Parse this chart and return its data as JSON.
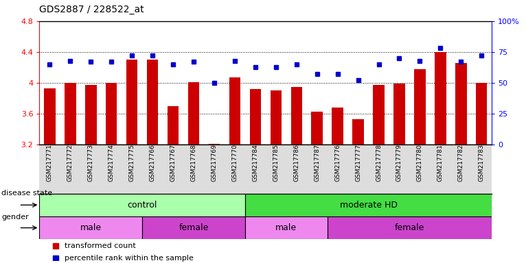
{
  "title": "GDS2887 / 228522_at",
  "samples": [
    "GSM217771",
    "GSM217772",
    "GSM217773",
    "GSM217774",
    "GSM217775",
    "GSM217766",
    "GSM217767",
    "GSM217768",
    "GSM217769",
    "GSM217770",
    "GSM217784",
    "GSM217785",
    "GSM217786",
    "GSM217787",
    "GSM217776",
    "GSM217777",
    "GSM217778",
    "GSM217779",
    "GSM217780",
    "GSM217781",
    "GSM217782",
    "GSM217783"
  ],
  "bar_values": [
    3.93,
    4.0,
    3.97,
    4.0,
    4.3,
    4.3,
    3.7,
    4.01,
    3.21,
    4.07,
    3.92,
    3.9,
    3.95,
    3.63,
    3.68,
    3.53,
    3.97,
    3.99,
    4.18,
    4.4,
    4.26,
    4.0
  ],
  "dot_values": [
    65,
    68,
    67,
    67,
    72,
    72,
    65,
    67,
    50,
    68,
    63,
    63,
    65,
    57,
    57,
    52,
    65,
    70,
    68,
    78,
    67,
    72
  ],
  "ylim_left": [
    3.2,
    4.8
  ],
  "ylim_right": [
    0,
    100
  ],
  "yticks_left": [
    3.2,
    3.6,
    4.0,
    4.4,
    4.8
  ],
  "ytick_labels_left": [
    "3.2",
    "3.6",
    "4",
    "4.4",
    "4.8"
  ],
  "yticks_right": [
    0,
    25,
    50,
    75,
    100
  ],
  "ytick_labels_right": [
    "0",
    "25",
    "50",
    "75",
    "100%"
  ],
  "grid_lines": [
    3.6,
    4.0,
    4.4
  ],
  "bar_color": "#cc0000",
  "dot_color": "#0000cc",
  "bar_bottom": 3.2,
  "disease_state_groups": [
    {
      "label": "control",
      "start": 0,
      "end": 10,
      "color": "#aaffaa"
    },
    {
      "label": "moderate HD",
      "start": 10,
      "end": 22,
      "color": "#44dd44"
    }
  ],
  "gender_groups": [
    {
      "label": "male",
      "start": 0,
      "end": 5,
      "color": "#ee88ee"
    },
    {
      "label": "female",
      "start": 5,
      "end": 10,
      "color": "#cc44cc"
    },
    {
      "label": "male",
      "start": 10,
      "end": 14,
      "color": "#ee88ee"
    },
    {
      "label": "female",
      "start": 14,
      "end": 22,
      "color": "#cc44cc"
    }
  ],
  "legend_items": [
    {
      "label": "transformed count",
      "color": "#cc0000"
    },
    {
      "label": "percentile rank within the sample",
      "color": "#0000cc"
    }
  ],
  "disease_label": "disease state",
  "gender_label": "gender",
  "bg_color": "#dddddd"
}
